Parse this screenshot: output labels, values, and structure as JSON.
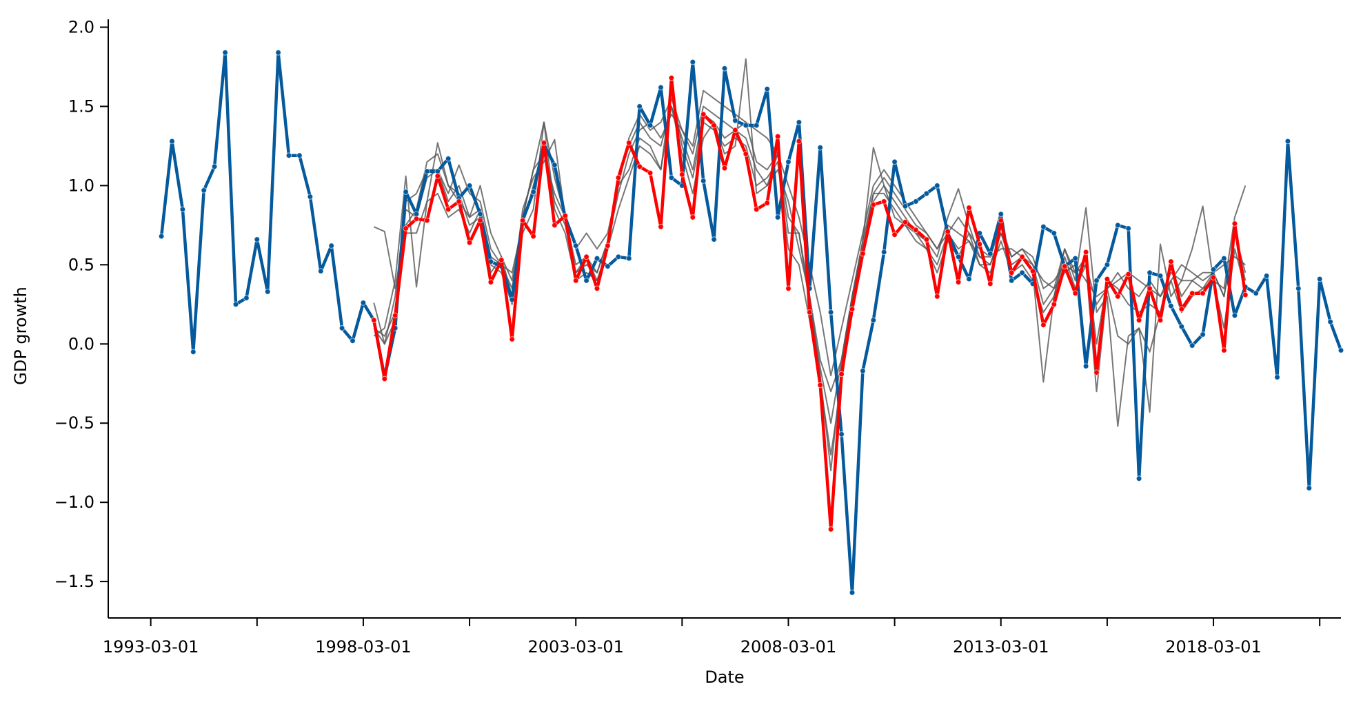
{
  "chart_data": {
    "type": "line",
    "title": "",
    "xlabel": "Date",
    "ylabel": "GDP growth",
    "x_tick_labels": [
      "1993-03-01",
      "1998-03-01",
      "2003-03-01",
      "2008-03-01",
      "2013-03-01",
      "2018-03-01"
    ],
    "x_tick_positions": [
      1993.0,
      1995.5,
      1998.0,
      2000.5,
      2003.0,
      2005.5,
      2008.0,
      2010.5,
      2013.0,
      2015.5,
      2018.0,
      2020.5
    ],
    "xlim": [
      1992.0,
      2021.0
    ],
    "ylim": [
      -1.73,
      2.05
    ],
    "y_ticks": [
      2.0,
      1.5,
      1.0,
      0.5,
      0.0,
      -0.5,
      -1.0,
      -1.5
    ],
    "y_tick_labels": [
      "2.0",
      "1.5",
      "1.0",
      "0.5",
      "0.0",
      "−0.5",
      "−1.0",
      "−1.5"
    ],
    "grid": false,
    "legend": "none",
    "colors": {
      "actual": "#045a9c",
      "forecast_mean": "#ff0000",
      "forecast_paths": "#555555"
    },
    "series": [
      {
        "role": "actual",
        "x_start": 1993.25,
        "step": 0.25,
        "values": [
          0.68,
          1.28,
          0.85,
          -0.05,
          0.97,
          1.12,
          1.84,
          0.25,
          0.29,
          0.66,
          0.33,
          1.84,
          1.19,
          1.19,
          0.93,
          0.46,
          0.62,
          0.1,
          0.02,
          0.26,
          0.15,
          -0.21,
          0.1,
          0.96,
          0.82,
          1.09,
          1.09,
          1.17,
          0.92,
          1.0,
          0.82,
          0.52,
          0.49,
          0.28,
          0.78,
          0.96,
          1.26,
          1.13,
          0.8,
          0.62,
          0.4,
          0.54,
          0.49,
          0.55,
          0.54,
          1.5,
          1.38,
          1.62,
          1.05,
          1.0,
          1.78,
          1.03,
          0.66,
          1.74,
          1.41,
          1.38,
          1.38,
          1.61,
          0.8,
          1.15,
          1.4,
          0.35,
          1.24,
          0.2,
          -0.57,
          -1.57,
          -0.17,
          0.15,
          0.58,
          1.15,
          0.87,
          0.9,
          0.95,
          1.0,
          0.7,
          0.55,
          0.41,
          0.7,
          0.57,
          0.82,
          0.4,
          0.45,
          0.38,
          0.74,
          0.7,
          0.49,
          0.54,
          -0.14,
          0.4,
          0.5,
          0.75,
          0.73,
          -0.85,
          0.45,
          0.43,
          0.24,
          0.11,
          -0.01,
          0.06,
          0.47,
          0.54,
          0.18,
          0.36,
          0.32,
          0.43,
          -0.21,
          1.28,
          0.35,
          -0.91,
          0.41,
          0.14,
          -0.04
        ]
      },
      {
        "role": "forecast_mean",
        "x_start": 1998.25,
        "step": 0.25,
        "values": [
          0.15,
          -0.22,
          0.18,
          0.73,
          0.79,
          0.78,
          1.06,
          0.85,
          0.9,
          0.64,
          0.78,
          0.39,
          0.53,
          0.03,
          0.78,
          0.68,
          1.27,
          0.75,
          0.81,
          0.4,
          0.55,
          0.35,
          0.62,
          1.05,
          1.27,
          1.12,
          1.08,
          0.74,
          1.68,
          1.07,
          0.8,
          1.45,
          1.38,
          1.11,
          1.35,
          1.2,
          0.85,
          0.89,
          1.31,
          0.35,
          1.28,
          0.2,
          -0.26,
          -1.17,
          -0.19,
          0.22,
          0.57,
          0.88,
          0.9,
          0.69,
          0.77,
          0.72,
          0.66,
          0.3,
          0.71,
          0.39,
          0.86,
          0.63,
          0.38,
          0.78,
          0.45,
          0.55,
          0.46,
          0.12,
          0.25,
          0.49,
          0.32,
          0.58,
          -0.18,
          0.41,
          0.3,
          0.44,
          0.15,
          0.35,
          0.15,
          0.52,
          0.22,
          0.32,
          0.32,
          0.42,
          -0.04,
          0.76,
          0.31
        ]
      }
    ],
    "forecast_paths": [
      {
        "x_start": 1998.25,
        "step": 0.25,
        "values": [
          0.74,
          0.71,
          0.35,
          0.7,
          0.7,
          0.9,
          1.27,
          1.0,
          0.9,
          0.8,
          1.0,
          0.7,
          0.55,
          0.4,
          0.8,
          1.1,
          1.4,
          1.05,
          0.8,
          0.6,
          0.7,
          0.6,
          0.7,
          1.0,
          1.3,
          1.45,
          1.35,
          1.4,
          1.55,
          1.35,
          1.25,
          1.6,
          1.55,
          1.5,
          1.45,
          1.4,
          1.35,
          1.3,
          1.2,
          1.0,
          0.8,
          0.5,
          0.2,
          -0.2,
          0.1,
          0.4,
          0.7,
          1.0,
          1.1,
          1.0,
          0.9,
          0.8,
          0.7,
          0.6,
          0.7,
          0.8,
          0.7,
          0.6,
          0.55,
          0.6,
          0.6,
          0.55,
          0.5,
          0.4,
          0.35,
          0.45,
          0.5,
          0.4,
          0.3,
          0.35,
          0.4,
          0.45,
          0.4,
          0.35,
          0.3,
          0.4,
          0.5,
          0.45,
          0.4,
          0.45,
          0.5,
          0.55,
          0.5
        ]
      },
      {
        "x_start": 1998.25,
        "step": 0.25,
        "values": [
          0.1,
          0.0,
          0.3,
          0.9,
          0.95,
          1.1,
          1.1,
          0.95,
          1.13,
          0.95,
          0.9,
          0.6,
          0.5,
          0.45,
          0.75,
          1.0,
          1.25,
          0.9,
          0.75,
          0.45,
          0.5,
          0.45,
          0.65,
          0.95,
          1.2,
          1.35,
          1.4,
          1.3,
          1.45,
          1.35,
          1.2,
          1.5,
          1.45,
          1.4,
          1.35,
          1.3,
          1.1,
          1.0,
          1.1,
          0.9,
          0.6,
          0.3,
          -0.1,
          -0.3,
          -0.1,
          0.3,
          0.65,
          0.95,
          1.05,
          0.95,
          0.85,
          0.75,
          0.7,
          0.6,
          0.75,
          0.7,
          0.65,
          0.55,
          0.5,
          0.7,
          0.55,
          0.6,
          0.55,
          0.35,
          0.4,
          0.5,
          0.45,
          0.5,
          0.25,
          0.35,
          0.45,
          0.35,
          0.3,
          0.4,
          0.3,
          0.45,
          0.4,
          0.4,
          0.45,
          0.45,
          0.3,
          0.7,
          0.45
        ]
      },
      {
        "x_start": 1998.25,
        "step": 0.25,
        "values": [
          0.05,
          0.1,
          0.4,
          1.06,
          0.36,
          0.9,
          0.95,
          0.8,
          0.85,
          0.7,
          0.85,
          0.5,
          0.45,
          0.25,
          0.7,
          0.85,
          1.4,
          0.85,
          0.7,
          0.4,
          0.45,
          0.4,
          0.6,
          0.85,
          1.05,
          1.25,
          1.2,
          1.1,
          1.5,
          1.2,
          0.95,
          1.3,
          1.4,
          1.2,
          1.25,
          1.8,
          0.95,
          1.0,
          1.2,
          0.7,
          0.7,
          0.3,
          -0.2,
          -0.8,
          -0.15,
          0.3,
          0.6,
          0.9,
          1.0,
          0.8,
          0.75,
          0.65,
          0.6,
          0.45,
          0.65,
          0.55,
          0.7,
          0.5,
          0.45,
          0.65,
          0.45,
          0.5,
          0.4,
          0.2,
          0.3,
          0.55,
          0.35,
          0.5,
          -0.3,
          0.35,
          0.05,
          0.0,
          0.1,
          -0.05,
          0.2,
          0.4,
          0.2,
          0.3,
          0.35,
          0.4,
          0.1,
          0.6,
          0.35
        ]
      },
      {
        "x_start": 1998.25,
        "step": 0.25,
        "values": [
          0.26,
          0.0,
          0.15,
          0.85,
          0.8,
          1.05,
          1.1,
          0.9,
          1.0,
          0.8,
          0.85,
          0.55,
          0.5,
          0.35,
          0.8,
          1.1,
          1.2,
          0.95,
          0.8,
          0.5,
          0.55,
          0.45,
          0.65,
          1.05,
          1.25,
          1.4,
          1.3,
          1.25,
          1.5,
          1.3,
          1.1,
          1.45,
          1.4,
          1.3,
          1.35,
          1.4,
          1.15,
          1.1,
          1.2,
          0.8,
          0.7,
          0.25,
          -0.15,
          -0.5,
          -0.1,
          0.3,
          0.65,
          1.24,
          1.0,
          0.9,
          0.8,
          0.7,
          0.65,
          0.55,
          0.8,
          0.98,
          0.75,
          0.55,
          0.55,
          0.75,
          0.55,
          0.6,
          0.5,
          0.25,
          0.35,
          0.6,
          0.4,
          0.86,
          0.2,
          0.3,
          -0.52,
          0.05,
          0.1,
          -0.43,
          0.63,
          0.3,
          0.4,
          0.6,
          0.87,
          0.4,
          0.35,
          0.8,
          1.0
        ]
      },
      {
        "x_start": 1998.25,
        "step": 0.25,
        "values": [
          0.1,
          0.05,
          0.2,
          0.75,
          0.85,
          1.15,
          1.2,
          1.0,
          0.95,
          0.75,
          0.8,
          0.45,
          0.55,
          0.3,
          0.85,
          1.05,
          1.15,
          1.29,
          0.8,
          0.45,
          0.55,
          0.4,
          0.6,
          1.0,
          1.1,
          1.3,
          1.25,
          1.1,
          1.6,
          1.25,
          1.05,
          1.4,
          1.35,
          1.25,
          1.3,
          1.25,
          1.0,
          1.05,
          1.15,
          0.6,
          0.5,
          0.15,
          -0.25,
          -0.7,
          -0.25,
          0.25,
          0.6,
          0.95,
          0.95,
          0.85,
          0.75,
          0.7,
          0.6,
          0.5,
          0.7,
          0.6,
          0.65,
          0.5,
          0.5,
          0.7,
          0.5,
          0.55,
          0.45,
          -0.24,
          0.3,
          0.6,
          0.45,
          0.55,
          0.0,
          0.4,
          0.35,
          0.25,
          0.2,
          0.25,
          0.2,
          0.5,
          0.3,
          0.4,
          0.35,
          0.45,
          0.3,
          0.7,
          0.4
        ]
      }
    ]
  }
}
